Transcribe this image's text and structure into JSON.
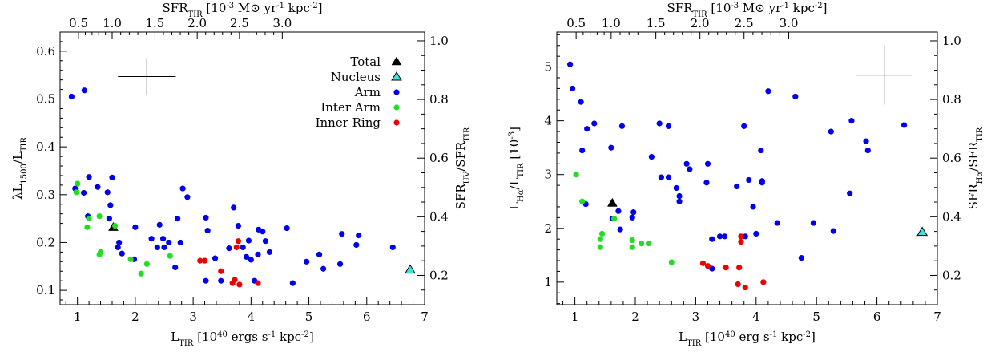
{
  "chart_data": [
    {
      "type": "scatter",
      "xlabel_main": "L",
      "xlabel_sub": "TIR",
      "xlabel_rest": " [10",
      "xlabel_exp": "40",
      "xlabel_tail": " ergs s",
      "xlabel_exp2": "-1",
      "xlabel_tail2": " kpc",
      "xlabel_exp3": "-2",
      "xlabel_end": "]",
      "ylabel_text": "λL1500/LTIR",
      "ylabel_main": "λL",
      "ylabel_sub": "1500",
      "ylabel_mid": "/L",
      "ylabel_sub2": "TIR",
      "top_label_main": "SFR",
      "top_label_sub": "TIR",
      "top_label_rest": " [10",
      "top_label_exp": "-3",
      "top_label_tail": " M⊙ yr",
      "top_label_exp2": "-1",
      "top_label_tail2": " kpc",
      "top_label_exp3": "-2",
      "top_label_end": "]",
      "right_label_main": "SFR",
      "right_label_sub": "UV",
      "right_label_mid": "/SFR",
      "right_label_sub2": "TIR",
      "xlim": [
        0.7,
        7.0
      ],
      "ylim": [
        0.07,
        0.64
      ],
      "right_ylim": [
        0.1,
        1.03
      ],
      "x_ticks": [
        "1",
        "2",
        "3",
        "4",
        "5",
        "6",
        "7"
      ],
      "y_ticks": [
        "0.1",
        "0.2",
        "0.3",
        "0.4",
        "0.5",
        "0.6"
      ],
      "top_ticks": [
        "0.5",
        "1.0",
        "1.5",
        "2.0",
        "2.5",
        "3.0"
      ],
      "right_ticks": [
        "0.2",
        "0.4",
        "0.6",
        "0.8",
        "1.0"
      ],
      "legend": [
        {
          "name": "Total",
          "marker": "triangle",
          "color": "#000000"
        },
        {
          "name": "Nucleus",
          "marker": "triangle-open",
          "color": "#40e0e0"
        },
        {
          "name": "Arm",
          "marker": "circle",
          "color": "#0000ee"
        },
        {
          "name": "Inter Arm",
          "marker": "circle",
          "color": "#22dd22"
        },
        {
          "name": "Inner Ring",
          "marker": "circle",
          "color": "#ee0000"
        }
      ],
      "error_bar": {
        "x": 2.2,
        "y": 0.547,
        "xerr": 0.5,
        "yerr": 0.038
      },
      "series": [
        {
          "name": "Total",
          "points": [
            [
              1.62,
              0.232
            ]
          ]
        },
        {
          "name": "Nucleus",
          "points": [
            [
              6.75,
              0.143
            ]
          ]
        },
        {
          "name": "Arm",
          "points": [
            [
              0.9,
              0.505
            ],
            [
              1.12,
              0.518
            ],
            [
              0.96,
              0.313
            ],
            [
              1.11,
              0.304
            ],
            [
              1.2,
              0.337
            ],
            [
              1.35,
              0.316
            ],
            [
              1.18,
              0.255
            ],
            [
              1.52,
              0.305
            ],
            [
              1.57,
              0.278
            ],
            [
              1.6,
              0.336
            ],
            [
              1.55,
              0.25
            ],
            [
              1.7,
              0.19
            ],
            [
              1.77,
              0.177
            ],
            [
              1.72,
              0.2
            ],
            [
              1.98,
              0.165
            ],
            [
              2.0,
              0.232
            ],
            [
              2.28,
              0.208
            ],
            [
              2.42,
              0.237
            ],
            [
              2.48,
              0.208
            ],
            [
              2.5,
              0.19
            ],
            [
              2.38,
              0.19
            ],
            [
              2.58,
              0.2
            ],
            [
              2.69,
              0.148
            ],
            [
              2.73,
              0.25
            ],
            [
              2.78,
              0.2
            ],
            [
              2.82,
              0.313
            ],
            [
              2.9,
              0.295
            ],
            [
              3.22,
              0.252
            ],
            [
              3.25,
              0.225
            ],
            [
              3.22,
              0.12
            ],
            [
              3.38,
              0.167
            ],
            [
              3.48,
              0.12
            ],
            [
              3.62,
              0.188
            ],
            [
              3.7,
              0.273
            ],
            [
              3.78,
              0.235
            ],
            [
              3.86,
              0.19
            ],
            [
              3.92,
              0.17
            ],
            [
              3.96,
              0.204
            ],
            [
              4.0,
              0.164
            ],
            [
              4.06,
              0.12
            ],
            [
              4.12,
              0.175
            ],
            [
              4.13,
              0.227
            ],
            [
              4.2,
              0.223
            ],
            [
              4.25,
              0.203
            ],
            [
              4.32,
              0.18
            ],
            [
              4.62,
              0.23
            ],
            [
              4.72,
              0.115
            ],
            [
              4.96,
              0.16
            ],
            [
              5.18,
              0.175
            ],
            [
              5.25,
              0.145
            ],
            [
              5.54,
              0.155
            ],
            [
              5.57,
              0.218
            ],
            [
              5.82,
              0.195
            ],
            [
              5.86,
              0.215
            ],
            [
              6.45,
              0.19
            ]
          ]
        },
        {
          "name": "Inter Arm",
          "points": [
            [
              1.0,
              0.323
            ],
            [
              0.98,
              0.305
            ],
            [
              1.17,
              0.232
            ],
            [
              1.2,
              0.25
            ],
            [
              1.38,
              0.255
            ],
            [
              1.38,
              0.175
            ],
            [
              1.4,
              0.18
            ],
            [
              1.65,
              0.235
            ],
            [
              1.92,
              0.165
            ],
            [
              2.1,
              0.135
            ],
            [
              2.2,
              0.155
            ],
            [
              2.6,
              0.172
            ]
          ]
        },
        {
          "name": "Inner Ring",
          "points": [
            [
              3.12,
              0.162
            ],
            [
              3.2,
              0.162
            ],
            [
              3.48,
              0.14
            ],
            [
              3.68,
              0.115
            ],
            [
              3.72,
              0.122
            ],
            [
              3.78,
              0.203
            ],
            [
              3.75,
              0.19
            ],
            [
              3.8,
              0.112
            ],
            [
              4.12,
              0.115
            ]
          ]
        }
      ]
    },
    {
      "type": "scatter",
      "xlabel_main": "L",
      "xlabel_sub": "TIR",
      "xlabel_rest": " [10",
      "xlabel_exp": "40",
      "xlabel_tail": " erg s",
      "xlabel_exp2": "-1",
      "xlabel_tail2": " kpc",
      "xlabel_exp3": "-2",
      "xlabel_end": "]",
      "ylabel_main": "L",
      "ylabel_sub": "Hα",
      "ylabel_mid": "/L",
      "ylabel_sub2": "TIR",
      "ylabel_bracket": " [10",
      "ylabel_exp": "-3",
      "ylabel_end": "]",
      "top_label_main": "SFR",
      "top_label_sub": "TIR",
      "top_label_rest": " [10",
      "top_label_exp": "-3",
      "top_label_tail": " M⊙ yr",
      "top_label_exp2": "-1",
      "top_label_tail2": " kpc",
      "top_label_exp3": "-2",
      "top_label_end": "]",
      "right_label_main": "SFR",
      "right_label_sub": "Hα",
      "right_label_mid": "/SFR",
      "right_label_sub2": "TIR",
      "xlim": [
        0.7,
        7.0
      ],
      "ylim": [
        0.58,
        5.65
      ],
      "right_ylim": [
        0.1,
        1.03
      ],
      "x_ticks": [
        "1",
        "2",
        "3",
        "4",
        "5",
        "6",
        "7"
      ],
      "y_ticks": [
        "1",
        "2",
        "3",
        "4",
        "5"
      ],
      "top_ticks": [
        "0.5",
        "1.0",
        "1.5",
        "2.0",
        "2.5",
        "3.0"
      ],
      "right_ticks": [
        "0.2",
        "0.4",
        "0.6",
        "0.8",
        "1.0"
      ],
      "error_bar": {
        "x": 6.12,
        "y": 4.85,
        "xerr": 0.47,
        "yerr": 0.55
      },
      "series": [
        {
          "name": "Total",
          "points": [
            [
              1.62,
              2.47
            ]
          ]
        },
        {
          "name": "Nucleus",
          "points": [
            [
              6.75,
              1.93
            ]
          ]
        },
        {
          "name": "Arm",
          "points": [
            [
              0.92,
              5.05
            ],
            [
              0.96,
              4.6
            ],
            [
              1.1,
              4.35
            ],
            [
              1.12,
              3.45
            ],
            [
              1.18,
              2.45
            ],
            [
              1.2,
              3.85
            ],
            [
              1.32,
              3.95
            ],
            [
              1.6,
              3.5
            ],
            [
              1.62,
              2.18
            ],
            [
              1.72,
              2.32
            ],
            [
              1.75,
              1.98
            ],
            [
              1.78,
              3.9
            ],
            [
              1.95,
              2.2
            ],
            [
              1.97,
              2.3
            ],
            [
              2.27,
              3.33
            ],
            [
              2.4,
              3.95
            ],
            [
              2.43,
              2.95
            ],
            [
              2.55,
              3.9
            ],
            [
              2.55,
              2.95
            ],
            [
              2.68,
              2.75
            ],
            [
              2.73,
              2.5
            ],
            [
              2.73,
              2.6
            ],
            [
              2.85,
              3.2
            ],
            [
              2.9,
              3.1
            ],
            [
              3.18,
              2.85
            ],
            [
              3.2,
              3.2
            ],
            [
              3.27,
              1.25
            ],
            [
              3.27,
              1.8
            ],
            [
              3.4,
              1.85
            ],
            [
              3.48,
              1.85
            ],
            [
              3.68,
              2.78
            ],
            [
              3.8,
              3.9
            ],
            [
              3.82,
              1.85
            ],
            [
              3.88,
              2.9
            ],
            [
              3.95,
              2.4
            ],
            [
              4.0,
              1.9
            ],
            [
              4.08,
              3.45
            ],
            [
              4.1,
              2.85
            ],
            [
              4.1,
              2.88
            ],
            [
              4.2,
              4.55
            ],
            [
              4.35,
              2.1
            ],
            [
              4.65,
              4.45
            ],
            [
              4.75,
              1.45
            ],
            [
              4.95,
              2.1
            ],
            [
              5.24,
              3.8
            ],
            [
              5.28,
              1.95
            ],
            [
              5.55,
              2.65
            ],
            [
              5.58,
              4.0
            ],
            [
              5.82,
              3.62
            ],
            [
              5.85,
              3.45
            ],
            [
              6.45,
              3.92
            ]
          ]
        },
        {
          "name": "Inter Arm",
          "points": [
            [
              1.02,
              3.0
            ],
            [
              1.12,
              2.5
            ],
            [
              1.42,
              1.8
            ],
            [
              1.45,
              1.9
            ],
            [
              1.42,
              1.65
            ],
            [
              1.65,
              2.18
            ],
            [
              1.95,
              1.78
            ],
            [
              1.95,
              1.65
            ],
            [
              2.1,
              1.72
            ],
            [
              2.22,
              1.72
            ],
            [
              2.6,
              1.37
            ]
          ]
        },
        {
          "name": "Inner Ring",
          "points": [
            [
              3.12,
              1.35
            ],
            [
              3.2,
              1.3
            ],
            [
              3.5,
              1.27
            ],
            [
              3.7,
              0.96
            ],
            [
              3.72,
              1.27
            ],
            [
              3.75,
              1.85
            ],
            [
              3.75,
              1.75
            ],
            [
              3.82,
              0.9
            ],
            [
              4.12,
              1.0
            ]
          ]
        }
      ]
    }
  ]
}
